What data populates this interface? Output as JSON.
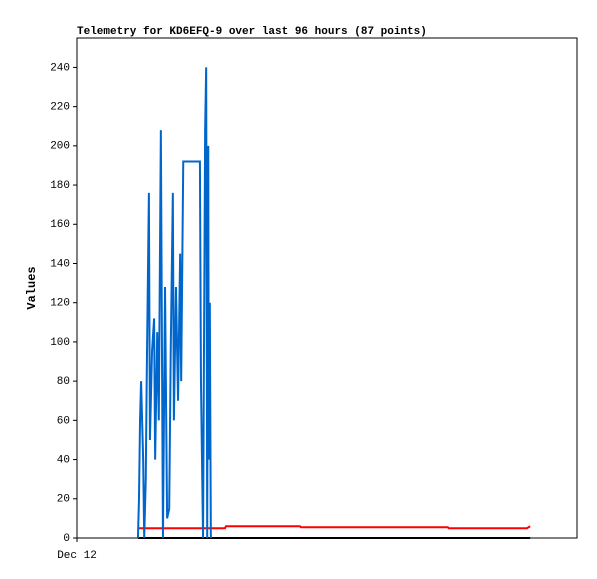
{
  "chart_data": {
    "type": "line",
    "title": "Telemetry for KD6EFQ-9 over last 96 hours (87 points)",
    "y_label": "Values",
    "xlim": [
      0,
      96
    ],
    "xticks": [
      {
        "value": 0,
        "label": "Dec 12"
      }
    ],
    "ylim": [
      0,
      255
    ],
    "yticks": [
      0,
      20,
      40,
      60,
      80,
      100,
      120,
      140,
      160,
      180,
      200,
      220,
      240
    ],
    "grid": false,
    "series": [
      {
        "color": "#000000",
        "x": [
          11.7,
          87.0
        ],
        "values": [
          0,
          0
        ]
      },
      {
        "color": "#ff0000",
        "x": [
          11.7,
          28.4,
          28.6,
          42.8,
          43.0,
          71.2,
          71.4,
          86.4,
          87.0
        ],
        "values": [
          5,
          5,
          6,
          6,
          5.5,
          5.5,
          5,
          5,
          6
        ]
      },
      {
        "color": "#0066cc",
        "x": [
          11.7,
          11.9,
          12.1,
          12.3,
          12.7,
          12.9,
          13.2,
          13.4,
          13.8,
          14.0,
          14.4,
          14.8,
          15.0,
          15.4,
          15.7,
          16.1,
          16.5,
          16.9,
          17.3,
          17.7,
          18.0,
          18.4,
          18.6,
          19.0,
          19.4,
          19.8,
          20.0,
          20.4,
          23.6,
          23.8,
          24.2,
          24.4,
          24.6,
          24.8,
          25.0,
          25.2,
          25.3,
          25.5,
          25.7
        ],
        "values": [
          0,
          20,
          60,
          80,
          40,
          0,
          30,
          85,
          176,
          50,
          95,
          112,
          40,
          105,
          60,
          208,
          0,
          128,
          10,
          15,
          96,
          176,
          60,
          128,
          70,
          145,
          80,
          192,
          192,
          80,
          0,
          105,
          208,
          240,
          0,
          200,
          40,
          120,
          0
        ]
      }
    ]
  }
}
